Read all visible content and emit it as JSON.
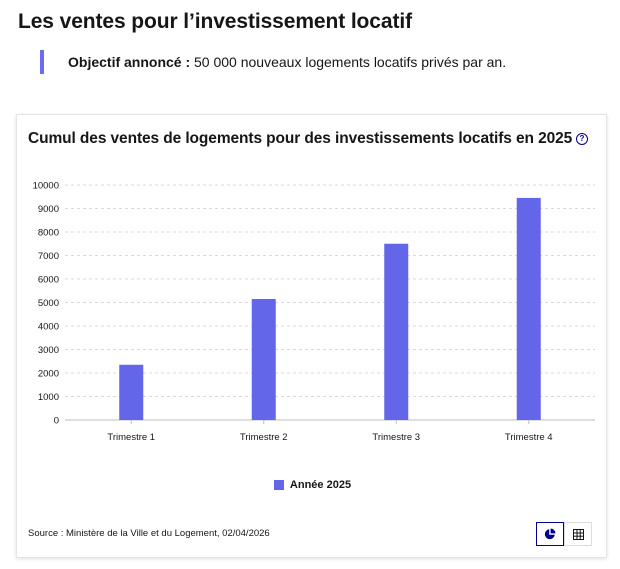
{
  "page": {
    "title": "Les ventes pour l’investissement locatif",
    "objective_label": "Objectif annoncé :",
    "objective_text": " 50 000 nouveaux logements locatifs privés par an."
  },
  "card": {
    "title": "Cumul des ventes de logements pour des investissements locatifs en 2025",
    "help_icon": "?",
    "source": "Source : Ministère de la Ville et du Logement, 02/04/2026"
  },
  "toolbar": {
    "chart_view_icon": "pie-chart-icon",
    "table_view_icon": "table-icon"
  },
  "colors": {
    "accent": "#6a6af4",
    "bar": "#6366e8",
    "brand_blue": "#000091"
  },
  "chart_data": {
    "type": "bar",
    "categories": [
      "Trimestre 1",
      "Trimestre 2",
      "Trimestre 3",
      "Trimestre 4"
    ],
    "series": [
      {
        "name": "Année 2025",
        "values": [
          2350,
          5150,
          7500,
          9450
        ]
      }
    ],
    "ylim": [
      0,
      10000
    ],
    "yticks": [
      0,
      1000,
      2000,
      3000,
      4000,
      5000,
      6000,
      7000,
      8000,
      9000,
      10000
    ],
    "grid": true,
    "legend_position": "bottom"
  }
}
